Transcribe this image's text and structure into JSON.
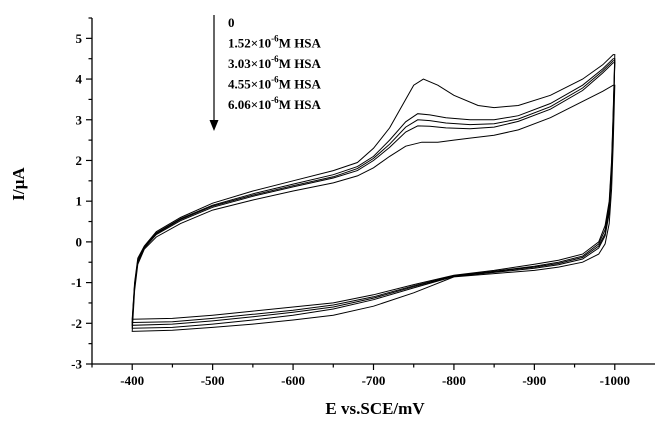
{
  "chart_data": {
    "type": "line",
    "title": "",
    "xlabel": "E vs.SCE/mV",
    "ylabel": "I/µA",
    "xlim": [
      -350,
      -1050
    ],
    "ylim": [
      -3,
      5.5
    ],
    "x_ticks": [
      -400,
      -500,
      -600,
      -700,
      -800,
      -900,
      -1000
    ],
    "x_tick_labels": [
      "-400",
      "-500",
      "-600",
      "-700",
      "-800",
      "-900",
      "-1000"
    ],
    "y_ticks": [
      -3,
      -2,
      -1,
      0,
      1,
      2,
      3,
      4,
      5
    ],
    "y_tick_labels": [
      "-3",
      "-2",
      "-1",
      "0",
      "1",
      "2",
      "3",
      "4",
      "5"
    ],
    "x_axis_reversed": true,
    "grid": false,
    "legend_position": "top-left, inside plot",
    "legend_arrow": "downward arrow alongside legend entries",
    "legend": [
      {
        "base": "0",
        "exp": "",
        "suffix": ""
      },
      {
        "base": "1.52×10",
        "exp": "-6",
        "suffix": "M  HSA"
      },
      {
        "base": "3.03×10",
        "exp": "-6",
        "suffix": "M  HSA"
      },
      {
        "base": "4.55×10",
        "exp": "-6",
        "suffix": "M  HSA"
      },
      {
        "base": "6.06×10",
        "exp": "-6",
        "suffix": "M  HSA"
      }
    ],
    "series": [
      {
        "upper": [
          [
            -400,
            -1.9
          ],
          [
            -403,
            -1.0
          ],
          [
            -407,
            -0.4
          ],
          [
            -415,
            -0.1
          ],
          [
            -430,
            0.25
          ],
          [
            -460,
            0.6
          ],
          [
            -500,
            0.95
          ],
          [
            -550,
            1.25
          ],
          [
            -600,
            1.5
          ],
          [
            -650,
            1.75
          ],
          [
            -680,
            1.95
          ],
          [
            -700,
            2.3
          ],
          [
            -720,
            2.8
          ],
          [
            -740,
            3.5
          ],
          [
            -750,
            3.85
          ],
          [
            -762,
            4.0
          ],
          [
            -780,
            3.85
          ],
          [
            -800,
            3.6
          ],
          [
            -830,
            3.35
          ],
          [
            -850,
            3.3
          ],
          [
            -880,
            3.35
          ],
          [
            -920,
            3.6
          ],
          [
            -960,
            4.0
          ],
          [
            -985,
            4.35
          ],
          [
            -998,
            4.6
          ]
        ],
        "lower": [
          [
            -1000,
            4.6
          ],
          [
            -998,
            3.2
          ],
          [
            -996,
            2.0
          ],
          [
            -993,
            1.0
          ],
          [
            -988,
            0.4
          ],
          [
            -980,
            0.0
          ],
          [
            -960,
            -0.3
          ],
          [
            -930,
            -0.45
          ],
          [
            -900,
            -0.55
          ],
          [
            -850,
            -0.7
          ],
          [
            -800,
            -0.82
          ],
          [
            -750,
            -1.05
          ],
          [
            -700,
            -1.3
          ],
          [
            -650,
            -1.5
          ],
          [
            -600,
            -1.6
          ],
          [
            -550,
            -1.7
          ],
          [
            -500,
            -1.8
          ],
          [
            -450,
            -1.88
          ],
          [
            -400,
            -1.9
          ]
        ]
      },
      {
        "upper": [
          [
            -400,
            -1.95
          ],
          [
            -403,
            -1.05
          ],
          [
            -407,
            -0.45
          ],
          [
            -415,
            -0.12
          ],
          [
            -430,
            0.22
          ],
          [
            -460,
            0.57
          ],
          [
            -500,
            0.9
          ],
          [
            -550,
            1.18
          ],
          [
            -600,
            1.42
          ],
          [
            -650,
            1.65
          ],
          [
            -680,
            1.85
          ],
          [
            -700,
            2.1
          ],
          [
            -720,
            2.5
          ],
          [
            -740,
            2.95
          ],
          [
            -755,
            3.15
          ],
          [
            -770,
            3.12
          ],
          [
            -790,
            3.05
          ],
          [
            -820,
            3.0
          ],
          [
            -850,
            3.0
          ],
          [
            -880,
            3.1
          ],
          [
            -920,
            3.4
          ],
          [
            -960,
            3.85
          ],
          [
            -985,
            4.25
          ],
          [
            -998,
            4.5
          ]
        ],
        "lower": [
          [
            -1000,
            4.5
          ],
          [
            -998,
            3.1
          ],
          [
            -996,
            1.9
          ],
          [
            -993,
            0.9
          ],
          [
            -988,
            0.3
          ],
          [
            -980,
            -0.05
          ],
          [
            -960,
            -0.35
          ],
          [
            -930,
            -0.5
          ],
          [
            -900,
            -0.6
          ],
          [
            -850,
            -0.72
          ],
          [
            -800,
            -0.83
          ],
          [
            -750,
            -1.08
          ],
          [
            -700,
            -1.35
          ],
          [
            -650,
            -1.55
          ],
          [
            -600,
            -1.68
          ],
          [
            -550,
            -1.78
          ],
          [
            -500,
            -1.88
          ],
          [
            -450,
            -1.96
          ],
          [
            -400,
            -1.98
          ]
        ]
      },
      {
        "upper": [
          [
            -400,
            -2.0
          ],
          [
            -403,
            -1.08
          ],
          [
            -407,
            -0.48
          ],
          [
            -415,
            -0.14
          ],
          [
            -430,
            0.2
          ],
          [
            -460,
            0.55
          ],
          [
            -500,
            0.88
          ],
          [
            -550,
            1.15
          ],
          [
            -600,
            1.38
          ],
          [
            -650,
            1.6
          ],
          [
            -680,
            1.8
          ],
          [
            -700,
            2.05
          ],
          [
            -720,
            2.4
          ],
          [
            -740,
            2.82
          ],
          [
            -755,
            3.0
          ],
          [
            -770,
            2.98
          ],
          [
            -790,
            2.92
          ],
          [
            -820,
            2.88
          ],
          [
            -850,
            2.9
          ],
          [
            -880,
            3.02
          ],
          [
            -920,
            3.32
          ],
          [
            -960,
            3.78
          ],
          [
            -985,
            4.2
          ],
          [
            -998,
            4.45
          ]
        ],
        "lower": [
          [
            -1000,
            4.45
          ],
          [
            -998,
            3.0
          ],
          [
            -996,
            1.8
          ],
          [
            -993,
            0.8
          ],
          [
            -988,
            0.2
          ],
          [
            -980,
            -0.1
          ],
          [
            -960,
            -0.38
          ],
          [
            -930,
            -0.53
          ],
          [
            -900,
            -0.62
          ],
          [
            -850,
            -0.73
          ],
          [
            -800,
            -0.84
          ],
          [
            -750,
            -1.1
          ],
          [
            -700,
            -1.38
          ],
          [
            -650,
            -1.6
          ],
          [
            -600,
            -1.73
          ],
          [
            -550,
            -1.84
          ],
          [
            -500,
            -1.94
          ],
          [
            -450,
            -2.02
          ],
          [
            -400,
            -2.05
          ]
        ]
      },
      {
        "upper": [
          [
            -400,
            -2.05
          ],
          [
            -403,
            -1.1
          ],
          [
            -407,
            -0.5
          ],
          [
            -415,
            -0.15
          ],
          [
            -430,
            0.18
          ],
          [
            -460,
            0.52
          ],
          [
            -500,
            0.85
          ],
          [
            -550,
            1.12
          ],
          [
            -600,
            1.35
          ],
          [
            -650,
            1.57
          ],
          [
            -680,
            1.75
          ],
          [
            -700,
            2.0
          ],
          [
            -720,
            2.32
          ],
          [
            -740,
            2.7
          ],
          [
            -755,
            2.85
          ],
          [
            -770,
            2.84
          ],
          [
            -790,
            2.8
          ],
          [
            -820,
            2.78
          ],
          [
            -850,
            2.82
          ],
          [
            -880,
            2.96
          ],
          [
            -920,
            3.26
          ],
          [
            -960,
            3.72
          ],
          [
            -985,
            4.15
          ],
          [
            -998,
            4.4
          ]
        ],
        "lower": [
          [
            -1000,
            4.4
          ],
          [
            -998,
            2.9
          ],
          [
            -996,
            1.7
          ],
          [
            -993,
            0.7
          ],
          [
            -988,
            0.15
          ],
          [
            -980,
            -0.15
          ],
          [
            -960,
            -0.42
          ],
          [
            -930,
            -0.56
          ],
          [
            -900,
            -0.65
          ],
          [
            -850,
            -0.75
          ],
          [
            -800,
            -0.85
          ],
          [
            -750,
            -1.13
          ],
          [
            -700,
            -1.42
          ],
          [
            -650,
            -1.65
          ],
          [
            -600,
            -1.8
          ],
          [
            -550,
            -1.92
          ],
          [
            -500,
            -2.02
          ],
          [
            -450,
            -2.1
          ],
          [
            -400,
            -2.12
          ]
        ]
      },
      {
        "upper": [
          [
            -400,
            -2.2
          ],
          [
            -403,
            -1.2
          ],
          [
            -407,
            -0.55
          ],
          [
            -415,
            -0.18
          ],
          [
            -430,
            0.12
          ],
          [
            -460,
            0.45
          ],
          [
            -500,
            0.78
          ],
          [
            -550,
            1.03
          ],
          [
            -600,
            1.25
          ],
          [
            -650,
            1.45
          ],
          [
            -680,
            1.62
          ],
          [
            -700,
            1.82
          ],
          [
            -720,
            2.1
          ],
          [
            -740,
            2.35
          ],
          [
            -760,
            2.45
          ],
          [
            -780,
            2.45
          ],
          [
            -800,
            2.5
          ],
          [
            -820,
            2.55
          ],
          [
            -850,
            2.62
          ],
          [
            -880,
            2.75
          ],
          [
            -920,
            3.05
          ],
          [
            -960,
            3.45
          ],
          [
            -985,
            3.7
          ],
          [
            -998,
            3.85
          ]
        ],
        "lower": [
          [
            -1000,
            3.85
          ],
          [
            -998,
            2.4
          ],
          [
            -996,
            1.3
          ],
          [
            -993,
            0.45
          ],
          [
            -988,
            -0.05
          ],
          [
            -980,
            -0.3
          ],
          [
            -960,
            -0.5
          ],
          [
            -930,
            -0.62
          ],
          [
            -900,
            -0.7
          ],
          [
            -850,
            -0.78
          ],
          [
            -800,
            -0.86
          ],
          [
            -750,
            -1.25
          ],
          [
            -700,
            -1.58
          ],
          [
            -650,
            -1.8
          ],
          [
            -600,
            -1.92
          ],
          [
            -550,
            -2.02
          ],
          [
            -500,
            -2.1
          ],
          [
            -450,
            -2.17
          ],
          [
            -400,
            -2.2
          ]
        ]
      }
    ]
  }
}
